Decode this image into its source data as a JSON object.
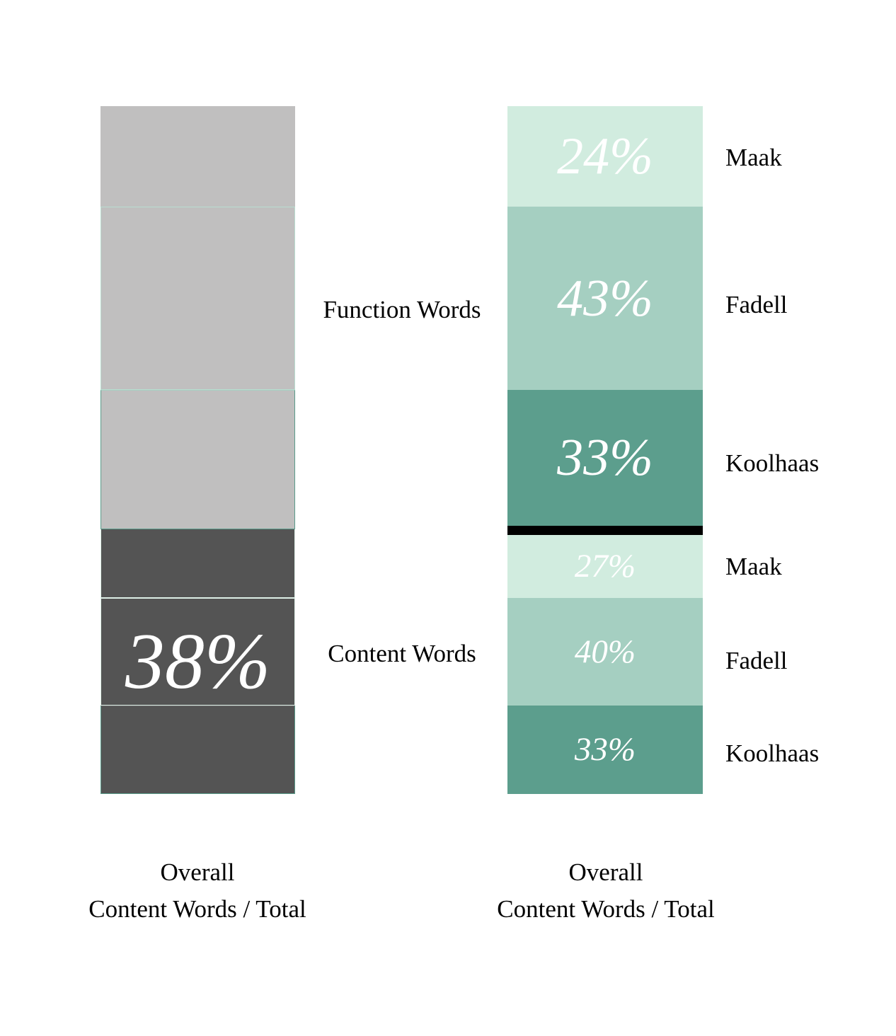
{
  "colors": {
    "pale_mint": "#d1ecdf",
    "medium_sage": "#a5cfc1",
    "dark_seagreen": "#5c9e8d",
    "light_gray": "#c0bfbf",
    "dark_gray": "#545454",
    "divider_black": "#000000",
    "pct_text": "#ffffff",
    "label_text": "#000000",
    "background": "#ffffff"
  },
  "chart_data": {
    "type": "bar",
    "subtype": "stacked_percentage_columns",
    "grid": false,
    "legend_position": "labels right of each segment",
    "columns": [
      {
        "id": "overall_gray_column",
        "caption_lines": [
          "Overall",
          "Content Words / Total"
        ],
        "value_label": "38%",
        "groups": [
          {
            "label": "Function Words",
            "share_of_total_pct": 62,
            "color_key": "light_gray",
            "segments": [
              {
                "pct": 24
              },
              {
                "pct": 43
              },
              {
                "pct": 33
              }
            ]
          },
          {
            "label": "Content Words",
            "share_of_total_pct": 38,
            "color_key": "dark_gray",
            "segments": [
              {
                "pct": 27
              },
              {
                "pct": 40
              },
              {
                "pct": 33
              }
            ]
          }
        ]
      },
      {
        "id": "by_speaker_green_column",
        "caption_lines": [
          "Overall",
          "Content Words / Total"
        ],
        "has_black_divider_between_groups": true,
        "groups": [
          {
            "label": "Function Words",
            "segments": [
              {
                "speaker": "Maak",
                "pct": 24,
                "pct_label": "24%",
                "color_key": "pale_mint"
              },
              {
                "speaker": "Fadell",
                "pct": 43,
                "pct_label": "43%",
                "color_key": "medium_sage"
              },
              {
                "speaker": "Koolhaas",
                "pct": 33,
                "pct_label": "33%",
                "color_key": "dark_seagreen"
              }
            ]
          },
          {
            "label": "Content Words",
            "segments": [
              {
                "speaker": "Maak",
                "pct": 27,
                "pct_label": "27%",
                "color_key": "pale_mint"
              },
              {
                "speaker": "Fadell",
                "pct": 40,
                "pct_label": "40%",
                "color_key": "medium_sage"
              },
              {
                "speaker": "Koolhaas",
                "pct": 33,
                "pct_label": "33%",
                "color_key": "dark_seagreen"
              }
            ]
          }
        ]
      }
    ]
  }
}
